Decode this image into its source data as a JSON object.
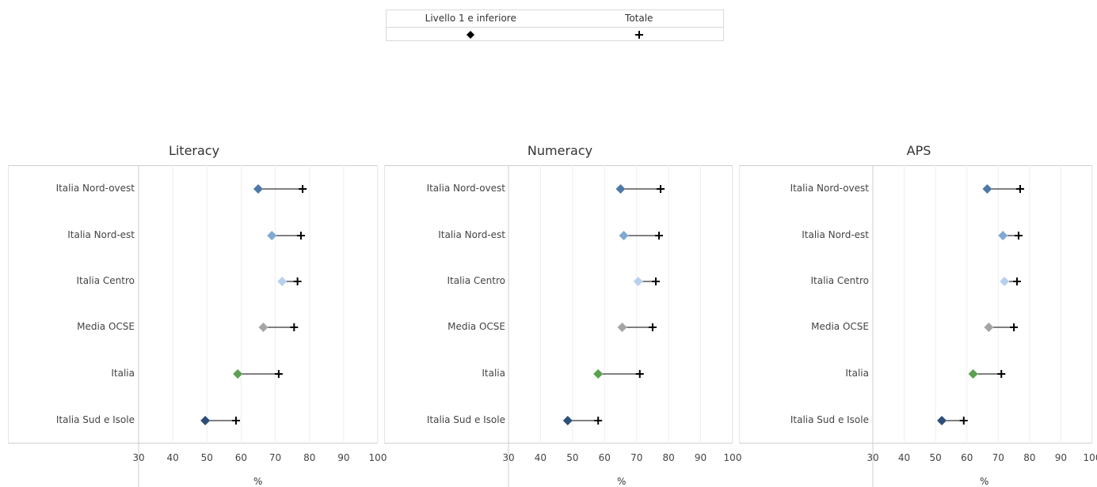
{
  "legend": {
    "items": [
      {
        "label": "Livello 1 e inferiore",
        "symbol": "diamond"
      },
      {
        "label": "Totale",
        "symbol": "plus"
      }
    ]
  },
  "chart_data": [
    {
      "type": "dot-range",
      "title": "Literacy",
      "xlabel": "%",
      "xlim": [
        30,
        100
      ],
      "xticks": [
        30,
        40,
        50,
        60,
        70,
        80,
        90,
        100
      ],
      "grid": true,
      "categories": [
        "Italia Nord-ovest",
        "Italia Nord-est",
        "Italia Centro",
        "Media OCSE",
        "Italia",
        "Italia Sud e Isole"
      ],
      "series": [
        {
          "name": "Livello 1 e inferiore",
          "values": [
            65,
            69,
            72,
            66.5,
            59,
            49.5
          ]
        },
        {
          "name": "Totale",
          "values": [
            78,
            77.5,
            76.5,
            75.5,
            71,
            58.5
          ]
        }
      ],
      "colors": [
        "#4e79a7",
        "#7fa9d4",
        "#b6d1ee",
        "#a5a5a5",
        "#59a14f",
        "#2d4f77"
      ]
    },
    {
      "type": "dot-range",
      "title": "Numeracy",
      "xlabel": "%",
      "xlim": [
        30,
        100
      ],
      "xticks": [
        30,
        40,
        50,
        60,
        70,
        80,
        90,
        100
      ],
      "grid": true,
      "categories": [
        "Italia Nord-ovest",
        "Italia Nord-est",
        "Italia Centro",
        "Media OCSE",
        "Italia",
        "Italia Sud e Isole"
      ],
      "series": [
        {
          "name": "Livello 1 e inferiore",
          "values": [
            65,
            66,
            70.5,
            65.5,
            58,
            48.5
          ]
        },
        {
          "name": "Totale",
          "values": [
            77.5,
            77,
            76,
            75,
            71,
            58
          ]
        }
      ],
      "colors": [
        "#4e79a7",
        "#7fa9d4",
        "#b6d1ee",
        "#a5a5a5",
        "#59a14f",
        "#2d4f77"
      ]
    },
    {
      "type": "dot-range",
      "title": "APS",
      "xlabel": "%",
      "xlim": [
        30,
        100
      ],
      "xticks": [
        30,
        40,
        50,
        60,
        70,
        80,
        90,
        100
      ],
      "grid": true,
      "categories": [
        "Italia Nord-ovest",
        "Italia Nord-est",
        "Italia Centro",
        "Media OCSE",
        "Italia",
        "Italia Sud e Isole"
      ],
      "series": [
        {
          "name": "Livello 1 e inferiore",
          "values": [
            66.5,
            71.5,
            72,
            67,
            62,
            52
          ]
        },
        {
          "name": "Totale",
          "values": [
            77,
            76.5,
            76,
            75,
            71,
            59
          ]
        }
      ],
      "colors": [
        "#4e79a7",
        "#7fa9d4",
        "#b6d1ee",
        "#a5a5a5",
        "#59a14f",
        "#2d4f77"
      ]
    }
  ]
}
